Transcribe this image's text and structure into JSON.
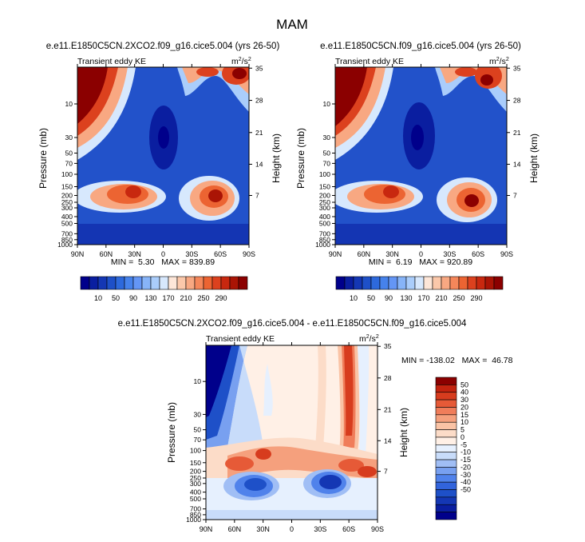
{
  "page": {
    "title": "MAM"
  },
  "colors": {
    "ke_scale": [
      "#00008b",
      "#0a1ea0",
      "#1437b4",
      "#1e50c8",
      "#2d69dc",
      "#4682eb",
      "#6496f5",
      "#87b4f8",
      "#aacdfb",
      "#d7e8fd",
      "#fde6d8",
      "#fbc8aa",
      "#f8a882",
      "#f5875a",
      "#ec6432",
      "#dc411e",
      "#c8280f",
      "#aa1405",
      "#8b0000"
    ],
    "diff_scale": [
      "#00008b",
      "#0a1ea0",
      "#1437b4",
      "#1e50c8",
      "#3264dc",
      "#5082eb",
      "#78a0f0",
      "#a0bef5",
      "#c8dcfa",
      "#e6f0fe",
      "#fff0e6",
      "#fcdcc8",
      "#fac3a5",
      "#f5a07d",
      "#f07d5a",
      "#e65a37",
      "#d73c1e",
      "#c3230f",
      "#8b0000"
    ]
  },
  "chart_data": [
    {
      "type": "heatmap",
      "title": "e.e11.E1850C5CN.2XCO2.f09_g16.cice5.004 (yrs 26-50)",
      "subtitle_left": "Transient eddy KE",
      "units": "m2/s2",
      "units_base": "m",
      "units_mid": "/s",
      "units_sup": "2",
      "xlabel": "",
      "ylabel": "Pressure (mb)",
      "ylabel_right": "Height (km)",
      "x_ticks": [
        "90N",
        "60N",
        "30N",
        "0",
        "30S",
        "60S",
        "90S"
      ],
      "y_ticks": [
        "10",
        "30",
        "50",
        "70",
        "100",
        "150",
        "200",
        "250",
        "300",
        "400",
        "500",
        "700",
        "850",
        "1000"
      ],
      "y_right_ticks": [
        "35",
        "28",
        "21",
        "14",
        "7"
      ],
      "ylim": [
        1000,
        3
      ],
      "min_max_label": "MIN =  5.30   MAX = 839.89",
      "min": 5.3,
      "max": 839.89,
      "levels": [
        10,
        30,
        50,
        70,
        90,
        110,
        130,
        150,
        170,
        190,
        210,
        230,
        250,
        270,
        290
      ],
      "colorbar_labels": [
        "10",
        "50",
        "90",
        "130",
        "170",
        "210",
        "250",
        "290"
      ]
    },
    {
      "type": "heatmap",
      "title": "e.e11.E1850C5CN.f09_g16.cice5.004 (yrs 26-50)",
      "subtitle_left": "Transient eddy KE",
      "units": "m2/s2",
      "units_base": "m",
      "units_mid": "/s",
      "units_sup": "2",
      "xlabel": "",
      "ylabel": "Pressure (mb)",
      "ylabel_right": "Height (km)",
      "x_ticks": [
        "90N",
        "60N",
        "30N",
        "0",
        "30S",
        "60S",
        "90S"
      ],
      "y_ticks": [
        "10",
        "30",
        "50",
        "70",
        "100",
        "150",
        "200",
        "250",
        "300",
        "400",
        "500",
        "700",
        "850",
        "1000"
      ],
      "y_right_ticks": [
        "35",
        "28",
        "21",
        "14",
        "7"
      ],
      "ylim": [
        1000,
        3
      ],
      "min_max_label": "MIN =  6.19   MAX = 920.89",
      "min": 6.19,
      "max": 920.89,
      "levels": [
        10,
        30,
        50,
        70,
        90,
        110,
        130,
        150,
        170,
        190,
        210,
        230,
        250,
        270,
        290
      ],
      "colorbar_labels": [
        "10",
        "50",
        "90",
        "130",
        "170",
        "210",
        "250",
        "290"
      ]
    },
    {
      "type": "heatmap",
      "title": "e.e11.E1850C5CN.2XCO2.f09_g16.cice5.004 - e.e11.E1850C5CN.f09_g16.cice5.004",
      "subtitle_left": "Transient eddy KE",
      "units": "m2/s2",
      "units_base": "m",
      "units_mid": "/s",
      "units_sup": "2",
      "xlabel": "",
      "ylabel": "Pressure (mb)",
      "ylabel_right": "Height (km)",
      "x_ticks": [
        "90N",
        "60N",
        "30N",
        "0",
        "30S",
        "60S",
        "90S"
      ],
      "y_ticks": [
        "10",
        "30",
        "50",
        "70",
        "100",
        "150",
        "200",
        "250",
        "300",
        "400",
        "500",
        "700",
        "850",
        "1000"
      ],
      "y_right_ticks": [
        "35",
        "28",
        "21",
        "14",
        "7"
      ],
      "ylim": [
        1000,
        3
      ],
      "min_max_label": "MIN = -138.02   MAX =  46.78",
      "min": -138.02,
      "max": 46.78,
      "levels": [
        -50,
        -40,
        -30,
        -20,
        -15,
        -10,
        -5,
        0,
        5,
        10,
        15,
        20,
        30,
        40,
        50
      ],
      "colorbar_labels": [
        "50",
        "40",
        "30",
        "20",
        "15",
        "10",
        "5",
        "0",
        "-5",
        "-10",
        "-15",
        "-20",
        "-30",
        "-40",
        "-50"
      ]
    }
  ]
}
